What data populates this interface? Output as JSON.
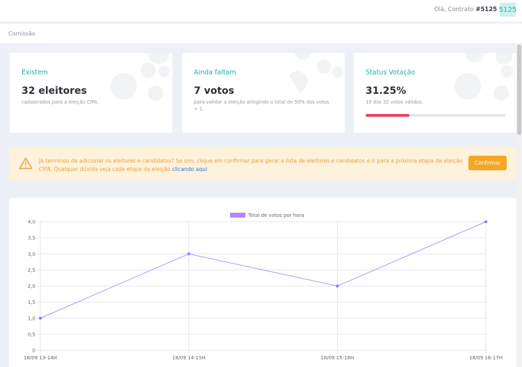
{
  "header": {
    "greeting_prefix": "Olá, Contrato",
    "contract_number": "#5125",
    "avatar_text": "5125"
  },
  "breadcrumb": {
    "label": "Comissão"
  },
  "cards": [
    {
      "title": "Existem",
      "value": "32 eleitores",
      "desc": "cadastrados para a eleição CIPA."
    },
    {
      "title": "Ainda faltam",
      "value": "7 votos",
      "desc": "para validar a eleição atingindo o total de 50% dos votos + 1."
    },
    {
      "title": "Status Votação",
      "value": "31.25%",
      "desc": "10 dos 32 votos válidos.",
      "progress": 0.3125
    }
  ],
  "alert": {
    "text": "Já terminou de adicionar os eleitores e candidatos? Se sim, clique em confirmar para gerar a lista de eleitores e candidatos e ir para a próxima etapa da eleição CIPA. Qualquer dúvida veja cada etapa da eleição",
    "link_text": "clicando aqui",
    "button_label": "Confirmar",
    "icon": "warning-icon"
  },
  "colors": {
    "accent": "#17b3a3",
    "warning": "#f5a623",
    "progress": "#e8445a",
    "series": "#9b6bff"
  },
  "chart_data": {
    "type": "line",
    "categories": [
      "18/09 13-14H",
      "18/09 14-15H",
      "18/09 15-16H",
      "18/09 16-17H"
    ],
    "series": [
      {
        "name": "Total de votos por hora",
        "values": [
          1,
          3,
          2,
          4
        ]
      }
    ],
    "ylim": [
      0,
      4
    ],
    "y_ticks": [
      "0",
      "0,5",
      "1,0",
      "1,5",
      "2,0",
      "2,5",
      "3,0",
      "3,5",
      "4,0"
    ],
    "grid": true,
    "legend": "top-center"
  }
}
